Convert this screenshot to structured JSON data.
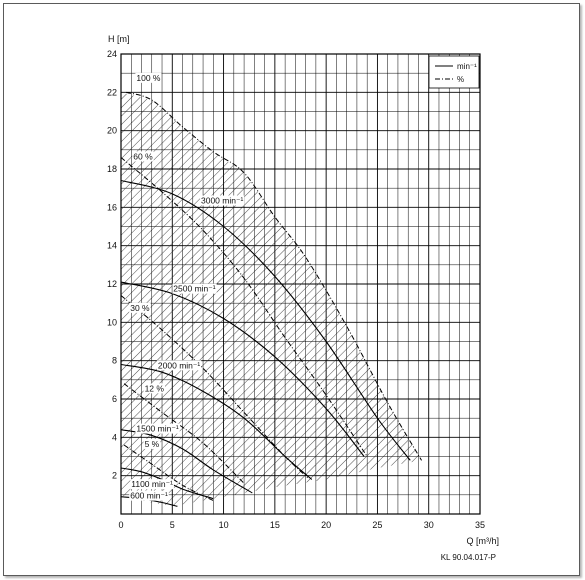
{
  "chart_data": {
    "type": "line",
    "xlabel": "Q [m³/h]",
    "ylabel": "H [m]",
    "xlim": [
      0,
      35
    ],
    "ylim": [
      0,
      24
    ],
    "x_ticks": [
      0,
      5,
      10,
      15,
      20,
      25,
      30,
      35
    ],
    "y_ticks": [
      2,
      4,
      6,
      8,
      10,
      12,
      14,
      16,
      18,
      20,
      22,
      24
    ],
    "grid": true,
    "legend_position": "top-right",
    "legend": [
      {
        "label": "min⁻¹",
        "style": "solid"
      },
      {
        "label": "%",
        "style": "dash-dot"
      }
    ],
    "footer": "KL 90.04.017-P",
    "speed_curves": [
      {
        "name": "3000 min⁻¹",
        "label_at": [
          7.8,
          16.2
        ],
        "points": [
          [
            0,
            17.4
          ],
          [
            5,
            16.7
          ],
          [
            10,
            15.0
          ],
          [
            15,
            12.4
          ],
          [
            20,
            9.0
          ],
          [
            25,
            5.0
          ],
          [
            28.2,
            2.8
          ]
        ]
      },
      {
        "name": "2500 min⁻¹",
        "label_at": [
          5.1,
          11.6
        ],
        "points": [
          [
            0,
            12.1
          ],
          [
            5,
            11.5
          ],
          [
            10,
            10.2
          ],
          [
            15,
            8.2
          ],
          [
            20,
            5.5
          ],
          [
            23.7,
            3.0
          ]
        ]
      },
      {
        "name": "2000 min⁻¹",
        "label_at": [
          3.6,
          7.6
        ],
        "points": [
          [
            0,
            7.8
          ],
          [
            4,
            7.4
          ],
          [
            8,
            6.4
          ],
          [
            12,
            5.0
          ],
          [
            16,
            3.0
          ],
          [
            18.6,
            1.8
          ]
        ]
      },
      {
        "name": "1500 min⁻¹",
        "label_at": [
          1.5,
          4.3
        ],
        "points": [
          [
            0,
            4.4
          ],
          [
            3,
            4.1
          ],
          [
            6,
            3.4
          ],
          [
            9,
            2.3
          ],
          [
            12.8,
            1.1
          ]
        ]
      },
      {
        "name": "1100 min⁻¹",
        "label_at": [
          1.0,
          1.4
        ],
        "points": [
          [
            0,
            2.4
          ],
          [
            2,
            2.2
          ],
          [
            4,
            1.8
          ],
          [
            6,
            1.3
          ],
          [
            9,
            0.8
          ]
        ]
      },
      {
        "name": "600 min⁻¹",
        "label_at": [
          0.9,
          0.8
        ],
        "points": [
          [
            0,
            0.9
          ],
          [
            2,
            0.8
          ],
          [
            4,
            0.6
          ],
          [
            5.5,
            0.4
          ]
        ]
      }
    ],
    "efficiency_curves": [
      {
        "name": "100 %",
        "label_at": [
          1.5,
          22.6
        ],
        "points": [
          [
            0.5,
            22.0
          ],
          [
            3,
            21.6
          ],
          [
            6,
            20.2
          ],
          [
            9,
            18.9
          ],
          [
            12,
            17.8
          ],
          [
            15,
            15.5
          ],
          [
            18,
            13.4
          ],
          [
            22,
            9.8
          ],
          [
            26,
            5.8
          ],
          [
            29.3,
            2.8
          ]
        ]
      },
      {
        "name": "60 %",
        "label_at": [
          1.2,
          18.5
        ],
        "points": [
          [
            0,
            18.6
          ],
          [
            4,
            16.8
          ],
          [
            8,
            14.8
          ],
          [
            12,
            12.3
          ],
          [
            16,
            9.2
          ],
          [
            20,
            6.2
          ],
          [
            24,
            3.0
          ]
        ]
      },
      {
        "name": "30 %",
        "label_at": [
          0.9,
          10.6
        ],
        "points": [
          [
            0,
            11.4
          ],
          [
            4,
            9.6
          ],
          [
            8,
            7.6
          ],
          [
            12,
            5.3
          ],
          [
            16,
            3.0
          ],
          [
            18.2,
            1.9
          ]
        ]
      },
      {
        "name": "12 %",
        "label_at": [
          2.3,
          6.4
        ],
        "points": [
          [
            0.3,
            6.8
          ],
          [
            4,
            5.3
          ],
          [
            8,
            3.7
          ],
          [
            12,
            1.6
          ]
        ]
      },
      {
        "name": "5 %",
        "label_at": [
          2.3,
          3.5
        ],
        "points": [
          [
            0.3,
            3.6
          ],
          [
            3,
            2.6
          ],
          [
            6,
            1.5
          ],
          [
            9,
            0.7
          ]
        ]
      }
    ],
    "hatched_region": {
      "points": [
        [
          0,
          22.0
        ],
        [
          3,
          21.6
        ],
        [
          6,
          20.2
        ],
        [
          9,
          18.9
        ],
        [
          12,
          17.8
        ],
        [
          15,
          15.5
        ],
        [
          18,
          13.4
        ],
        [
          22,
          9.8
        ],
        [
          26,
          5.8
        ],
        [
          29.3,
          2.8
        ],
        [
          25,
          2.4
        ],
        [
          20,
          1.8
        ],
        [
          15,
          1.4
        ],
        [
          12,
          1.1
        ],
        [
          9,
          0.8
        ],
        [
          6,
          0.5
        ],
        [
          5,
          0.4
        ],
        [
          3,
          0.6
        ],
        [
          0,
          0.9
        ]
      ]
    }
  }
}
